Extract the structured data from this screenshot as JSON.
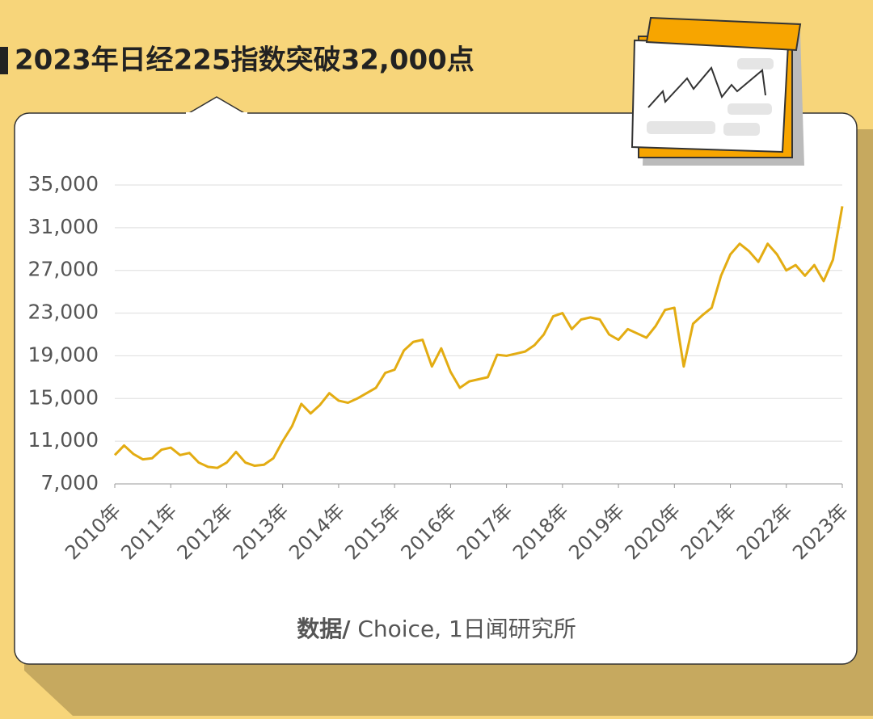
{
  "chart_data": {
    "type": "line",
    "title": "2023年日经225指数突破32,000点",
    "source_label": "数据/",
    "source": " Choice, 1日闻研究所",
    "categories": [
      "2010年",
      null,
      null,
      null,
      null,
      null,
      "2011年",
      null,
      null,
      null,
      null,
      null,
      "2012年",
      null,
      null,
      null,
      null,
      null,
      "2013年",
      null,
      null,
      null,
      null,
      null,
      "2014年",
      null,
      null,
      null,
      null,
      null,
      "2015年",
      null,
      null,
      null,
      null,
      null,
      "2016年",
      null,
      null,
      null,
      null,
      null,
      "2017年",
      null,
      null,
      null,
      null,
      null,
      "2018年",
      null,
      null,
      null,
      null,
      null,
      "2019年",
      null,
      null,
      null,
      null,
      null,
      "2020年",
      null,
      null,
      null,
      null,
      null,
      "2021年",
      null,
      null,
      null,
      null,
      null,
      "2022年",
      null,
      null,
      null,
      null,
      null,
      "2023年"
    ],
    "series": [
      {
        "name": "日经225指数",
        "color": "#e3ac12",
        "values": [
          9700,
          10600,
          9800,
          9300,
          9400,
          10200,
          10400,
          9700,
          9900,
          9000,
          8600,
          8500,
          9000,
          10000,
          9000,
          8700,
          8800,
          9400,
          11000,
          12400,
          14500,
          13600,
          14400,
          15500,
          14800,
          14600,
          15000,
          15500,
          16000,
          17400,
          17700,
          19500,
          20300,
          20500,
          18000,
          19700,
          17500,
          16000,
          16600,
          16800,
          17000,
          19100,
          19000,
          19200,
          19400,
          20000,
          21000,
          22700,
          23000,
          21500,
          22400,
          22600,
          22400,
          21000,
          20500,
          21500,
          21100,
          20700,
          21800,
          23300,
          23500,
          18000,
          22000,
          22800,
          23500,
          26500,
          28500,
          29500,
          28800,
          27800,
          29500,
          28500,
          27000,
          27500,
          26500,
          27500,
          26000,
          28000,
          33000
        ]
      }
    ],
    "ylim": [
      7000,
      35000
    ],
    "yticks": [
      {
        "value": 7000,
        "label": "7,000"
      },
      {
        "value": 11000,
        "label": "11,000"
      },
      {
        "value": 15000,
        "label": "15,000"
      },
      {
        "value": 19000,
        "label": "19,000"
      },
      {
        "value": 23000,
        "label": "23,000"
      },
      {
        "value": 27000,
        "label": "27,000"
      },
      {
        "value": 31000,
        "label": "31,000"
      },
      {
        "value": 35000,
        "label": "35,000"
      }
    ],
    "grid": true
  }
}
